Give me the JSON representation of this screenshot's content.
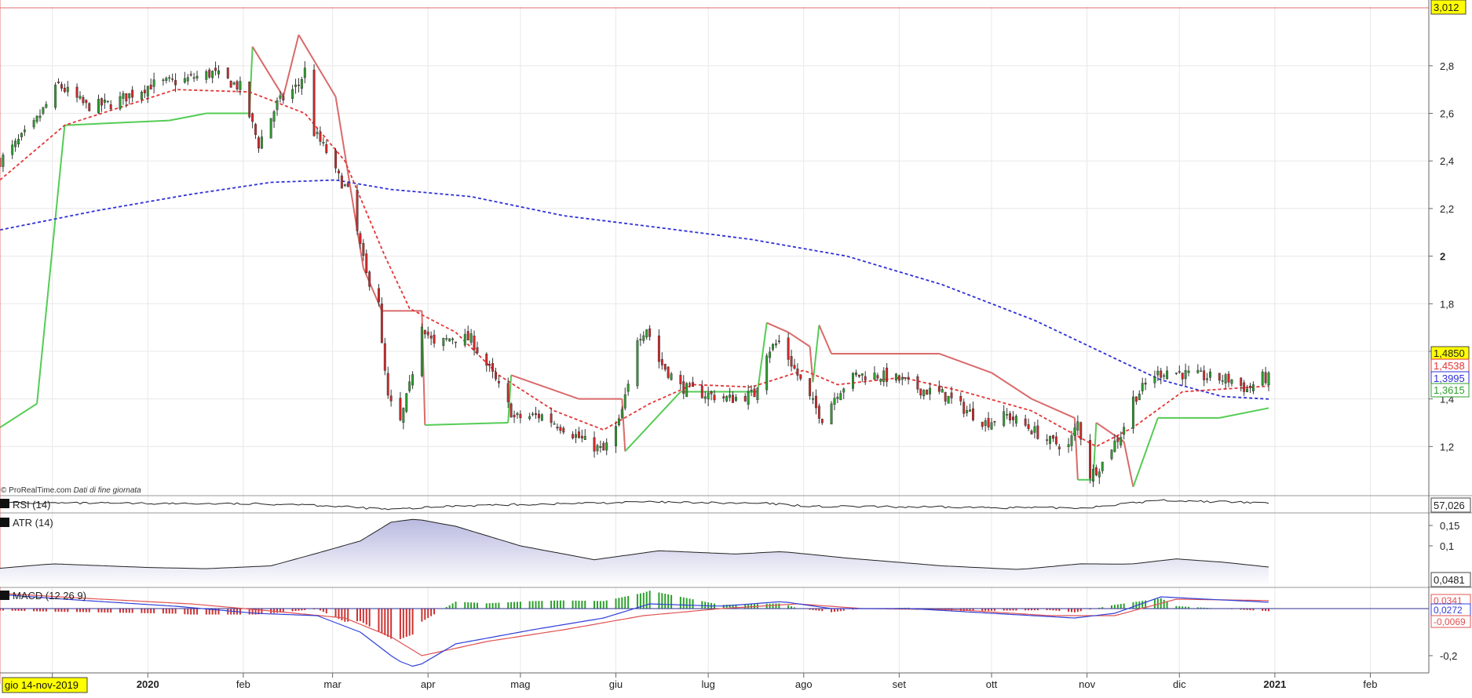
{
  "page": {
    "credit": "© ProRealTime.com",
    "credit_note": "Dati di fine giornata"
  },
  "colors": {
    "bull": "#2ca02c",
    "bear": "#d62728",
    "stop_red": "#d96a6a",
    "stop_green": "#55cc55",
    "sma20": "#e53535",
    "sma200": "#2f2fd8",
    "grid": "#e8e8e8",
    "axis": "#666666",
    "atr_fill": "#b9b9e0",
    "macd_line": "#2f3fd8",
    "signal_line": "#e05050",
    "hist_pos": "#2ca02c",
    "hist_neg": "#cc3333",
    "badge_yellow": "#ffff00",
    "badge_white": "#ffffff",
    "crosshair": "#e07070"
  },
  "chart_data": [
    {
      "type": "candlestick",
      "title": "",
      "ylim": [
        1.0,
        3.05
      ],
      "y_ticks": [
        "1,2",
        "1,4",
        "1,6",
        "1,8",
        "2",
        "2,2",
        "2,4",
        "2,6",
        "2,8"
      ],
      "y_tick_values": [
        1.2,
        1.4,
        1.6,
        1.8,
        2.0,
        2.2,
        2.4,
        2.6,
        2.8
      ],
      "bold_tick": "2",
      "x_month_labels": [
        "dic",
        "2020",
        "feb",
        "mar",
        "apr",
        "mag",
        "giu",
        "lug",
        "ago",
        "set",
        "ott",
        "nov",
        "dic",
        "2021",
        "feb"
      ],
      "x_month_dates": [
        "2019-12-01",
        "2020-01-01",
        "2020-02-01",
        "2020-03-01",
        "2020-04-01",
        "2020-05-01",
        "2020-06-01",
        "2020-07-01",
        "2020-08-01",
        "2020-09-01",
        "2020-10-01",
        "2020-11-01",
        "2020-12-01",
        "2021-01-01",
        "2021-02-01"
      ],
      "x_range": [
        "2019-11-14",
        "2021-02-20"
      ],
      "crosshair": {
        "date": "2019-11-14",
        "price": "3,012",
        "date_label": "gio 14-nov-2019"
      },
      "price_anchors": [
        [
          "2019-11-14",
          2.4
        ],
        [
          "2019-11-25",
          2.55
        ],
        [
          "2019-12-03",
          2.72
        ],
        [
          "2019-12-12",
          2.63
        ],
        [
          "2019-12-20",
          2.64
        ],
        [
          "2020-01-02",
          2.72
        ],
        [
          "2020-01-13",
          2.74
        ],
        [
          "2020-01-22",
          2.77
        ],
        [
          "2020-01-31",
          2.71
        ],
        [
          "2020-02-06",
          2.47
        ],
        [
          "2020-02-12",
          2.64
        ],
        [
          "2020-02-19",
          2.72
        ],
        [
          "2020-02-21",
          2.78
        ],
        [
          "2020-02-24",
          2.52
        ],
        [
          "2020-02-28",
          2.44
        ],
        [
          "2020-03-02",
          2.35
        ],
        [
          "2020-03-06",
          2.27
        ],
        [
          "2020-03-09",
          2.1
        ],
        [
          "2020-03-12",
          1.92
        ],
        [
          "2020-03-16",
          1.82
        ],
        [
          "2020-03-17",
          1.62
        ],
        [
          "2020-03-19",
          1.4
        ],
        [
          "2020-03-23",
          1.3
        ],
        [
          "2020-03-26",
          1.45
        ],
        [
          "2020-03-30",
          1.72
        ],
        [
          "2020-04-03",
          1.62
        ],
        [
          "2020-04-09",
          1.66
        ],
        [
          "2020-04-15",
          1.65
        ],
        [
          "2020-04-22",
          1.5
        ],
        [
          "2020-04-29",
          1.32
        ],
        [
          "2020-05-08",
          1.33
        ],
        [
          "2020-05-15",
          1.28
        ],
        [
          "2020-05-22",
          1.22
        ],
        [
          "2020-05-28",
          1.18
        ],
        [
          "2020-06-02",
          1.3
        ],
        [
          "2020-06-05",
          1.45
        ],
        [
          "2020-06-08",
          1.66
        ],
        [
          "2020-06-11",
          1.7
        ],
        [
          "2020-06-15",
          1.56
        ],
        [
          "2020-06-22",
          1.45
        ],
        [
          "2020-06-30",
          1.42
        ],
        [
          "2020-07-08",
          1.4
        ],
        [
          "2020-07-16",
          1.42
        ],
        [
          "2020-07-20",
          1.6
        ],
        [
          "2020-07-24",
          1.64
        ],
        [
          "2020-07-28",
          1.55
        ],
        [
          "2020-08-03",
          1.4
        ],
        [
          "2020-08-07",
          1.32
        ],
        [
          "2020-08-12",
          1.43
        ],
        [
          "2020-08-18",
          1.5
        ],
        [
          "2020-08-25",
          1.5
        ],
        [
          "2020-09-01",
          1.48
        ],
        [
          "2020-09-08",
          1.44
        ],
        [
          "2020-09-15",
          1.42
        ],
        [
          "2020-09-22",
          1.36
        ],
        [
          "2020-09-29",
          1.3
        ],
        [
          "2020-10-06",
          1.33
        ],
        [
          "2020-10-13",
          1.28
        ],
        [
          "2020-10-20",
          1.22
        ],
        [
          "2020-10-26",
          1.2
        ],
        [
          "2020-10-29",
          1.3
        ],
        [
          "2020-11-02",
          1.08
        ],
        [
          "2020-11-06",
          1.13
        ],
        [
          "2020-11-09",
          1.2
        ],
        [
          "2020-11-12",
          1.25
        ],
        [
          "2020-11-16",
          1.4
        ],
        [
          "2020-11-23",
          1.5
        ],
        [
          "2020-11-27",
          1.52
        ],
        [
          "2020-12-04",
          1.5
        ],
        [
          "2020-12-11",
          1.49
        ],
        [
          "2020-12-18",
          1.48
        ],
        [
          "2020-12-23",
          1.44
        ],
        [
          "2020-12-28",
          1.49
        ],
        [
          "2020-12-30",
          1.485
        ]
      ],
      "stop_anchors": [
        [
          "2019-11-14",
          1.28,
          "g"
        ],
        [
          "2019-11-26",
          1.38,
          "g"
        ],
        [
          "2019-12-05",
          2.55,
          "g"
        ],
        [
          "2020-01-08",
          2.57,
          "g"
        ],
        [
          "2020-01-20",
          2.6,
          "g"
        ],
        [
          "2020-02-03",
          2.6,
          "g"
        ],
        [
          "2020-02-04",
          2.88,
          "r"
        ],
        [
          "2020-02-14",
          2.67,
          "r"
        ],
        [
          "2020-02-19",
          2.93,
          "r"
        ],
        [
          "2020-03-02",
          2.67,
          "r"
        ],
        [
          "2020-03-11",
          1.95,
          "r"
        ],
        [
          "2020-03-17",
          1.77,
          "r"
        ],
        [
          "2020-03-30",
          1.77,
          "r"
        ],
        [
          "2020-03-31",
          1.29,
          "g"
        ],
        [
          "2020-04-27",
          1.3,
          "g"
        ],
        [
          "2020-04-28",
          1.5,
          "r"
        ],
        [
          "2020-05-20",
          1.4,
          "r"
        ],
        [
          "2020-06-03",
          1.4,
          "r"
        ],
        [
          "2020-06-04",
          1.18,
          "g"
        ],
        [
          "2020-06-22",
          1.43,
          "g"
        ],
        [
          "2020-07-17",
          1.43,
          "g"
        ],
        [
          "2020-07-20",
          1.72,
          "r"
        ],
        [
          "2020-07-27",
          1.68,
          "r"
        ],
        [
          "2020-08-03",
          1.62,
          "r"
        ],
        [
          "2020-08-04",
          1.47,
          "g"
        ],
        [
          "2020-08-06",
          1.71,
          "r"
        ],
        [
          "2020-08-10",
          1.59,
          "r"
        ],
        [
          "2020-09-14",
          1.59,
          "r"
        ],
        [
          "2020-10-01",
          1.51,
          "r"
        ],
        [
          "2020-10-14",
          1.4,
          "r"
        ],
        [
          "2020-10-28",
          1.32,
          "r"
        ],
        [
          "2020-10-29",
          1.06,
          "g"
        ],
        [
          "2020-11-03",
          1.06,
          "g"
        ],
        [
          "2020-11-04",
          1.3,
          "r"
        ],
        [
          "2020-11-13",
          1.22,
          "r"
        ],
        [
          "2020-11-16",
          1.03,
          "g"
        ],
        [
          "2020-11-24",
          1.32,
          "g"
        ],
        [
          "2020-12-14",
          1.32,
          "g"
        ],
        [
          "2020-12-30",
          1.3615,
          "g"
        ]
      ],
      "sma20_anchors": [
        [
          "2019-11-14",
          2.32
        ],
        [
          "2019-12-05",
          2.55
        ],
        [
          "2020-01-10",
          2.7
        ],
        [
          "2020-02-03",
          2.69
        ],
        [
          "2020-02-21",
          2.6
        ],
        [
          "2020-03-05",
          2.4
        ],
        [
          "2020-03-18",
          2.0
        ],
        [
          "2020-03-26",
          1.78
        ],
        [
          "2020-04-10",
          1.68
        ],
        [
          "2020-04-24",
          1.5
        ],
        [
          "2020-05-12",
          1.35
        ],
        [
          "2020-05-28",
          1.27
        ],
        [
          "2020-06-12",
          1.38
        ],
        [
          "2020-06-26",
          1.46
        ],
        [
          "2020-07-15",
          1.45
        ],
        [
          "2020-08-01",
          1.52
        ],
        [
          "2020-08-12",
          1.46
        ],
        [
          "2020-09-02",
          1.49
        ],
        [
          "2020-09-22",
          1.43
        ],
        [
          "2020-10-14",
          1.35
        ],
        [
          "2020-11-04",
          1.2
        ],
        [
          "2020-11-16",
          1.28
        ],
        [
          "2020-12-02",
          1.43
        ],
        [
          "2020-12-30",
          1.4538
        ]
      ],
      "sma200_anchors": [
        [
          "2019-11-14",
          2.11
        ],
        [
          "2019-12-15",
          2.19
        ],
        [
          "2020-01-15",
          2.26
        ],
        [
          "2020-02-10",
          2.31
        ],
        [
          "2020-03-02",
          2.32
        ],
        [
          "2020-03-20",
          2.28
        ],
        [
          "2020-04-15",
          2.25
        ],
        [
          "2020-05-15",
          2.17
        ],
        [
          "2020-06-15",
          2.12
        ],
        [
          "2020-07-15",
          2.07
        ],
        [
          "2020-08-15",
          2.0
        ],
        [
          "2020-09-15",
          1.88
        ],
        [
          "2020-10-15",
          1.73
        ],
        [
          "2020-11-15",
          1.54
        ],
        [
          "2020-11-25",
          1.48
        ],
        [
          "2020-12-15",
          1.41
        ],
        [
          "2020-12-30",
          1.3995
        ]
      ],
      "last_values": [
        {
          "label": "1,4850",
          "value": 1.485,
          "color": "#222222",
          "bg": "#ffff00"
        },
        {
          "label": "1,4538",
          "value": 1.4538,
          "color": "#e53535",
          "bg": "#ffffff"
        },
        {
          "label": "1,3995",
          "value": 1.3995,
          "color": "#2f2fd8",
          "bg": "#ffffff"
        },
        {
          "label": "1,3615",
          "value": 1.3615,
          "color": "#2ca02c",
          "bg": "#ffffff"
        }
      ]
    },
    {
      "type": "line",
      "title": "RSI (14)",
      "last_value": "57,026",
      "ylim": [
        20,
        80
      ],
      "anchors": [
        [
          "2019-11-14",
          58
        ],
        [
          "2020-01-15",
          55
        ],
        [
          "2020-02-20",
          52
        ],
        [
          "2020-03-20",
          28
        ],
        [
          "2020-04-10",
          45
        ],
        [
          "2020-06-10",
          62
        ],
        [
          "2020-07-20",
          55
        ],
        [
          "2020-08-05",
          42
        ],
        [
          "2020-10-30",
          35
        ],
        [
          "2020-11-25",
          70
        ],
        [
          "2020-12-30",
          57.026
        ]
      ]
    },
    {
      "type": "area",
      "title": "ATR (14)",
      "last_value": "0,0481",
      "y_ticks": [
        "0,1",
        "0,15"
      ],
      "y_tick_values": [
        0.1,
        0.15
      ],
      "ylim": [
        0.0,
        0.175
      ],
      "anchors": [
        [
          "2019-11-14",
          0.045
        ],
        [
          "2019-12-01",
          0.056
        ],
        [
          "2020-01-01",
          0.047
        ],
        [
          "2020-01-20",
          0.044
        ],
        [
          "2020-02-10",
          0.051
        ],
        [
          "2020-02-25",
          0.082
        ],
        [
          "2020-03-10",
          0.112
        ],
        [
          "2020-03-20",
          0.158
        ],
        [
          "2020-03-28",
          0.166
        ],
        [
          "2020-04-10",
          0.148
        ],
        [
          "2020-05-01",
          0.1
        ],
        [
          "2020-05-25",
          0.066
        ],
        [
          "2020-06-15",
          0.088
        ],
        [
          "2020-07-10",
          0.08
        ],
        [
          "2020-07-25",
          0.086
        ],
        [
          "2020-08-15",
          0.07
        ],
        [
          "2020-09-15",
          0.051
        ],
        [
          "2020-10-10",
          0.042
        ],
        [
          "2020-10-30",
          0.056
        ],
        [
          "2020-11-15",
          0.055
        ],
        [
          "2020-11-30",
          0.068
        ],
        [
          "2020-12-15",
          0.06
        ],
        [
          "2020-12-30",
          0.0481
        ]
      ]
    },
    {
      "type": "line",
      "title": "MACD (12 26 9)",
      "y_ticks": [
        "-0,2"
      ],
      "y_tick_values": [
        -0.2
      ],
      "ylim": [
        -0.27,
        0.08
      ],
      "last_values": [
        {
          "label": "0,0341",
          "value": 0.0341,
          "color": "#e05050"
        },
        {
          "label": "0,0272",
          "value": 0.0272,
          "color": "#2f3fd8"
        },
        {
          "label": "-0,0069",
          "value": -0.0069,
          "color": "#e05050"
        }
      ],
      "macd_anchors": [
        [
          "2019-11-14",
          0.06
        ],
        [
          "2019-12-05",
          0.04
        ],
        [
          "2020-01-10",
          0.01
        ],
        [
          "2020-02-05",
          -0.02
        ],
        [
          "2020-02-25",
          -0.03
        ],
        [
          "2020-03-10",
          -0.1
        ],
        [
          "2020-03-22",
          -0.22
        ],
        [
          "2020-03-28",
          -0.25
        ],
        [
          "2020-04-10",
          -0.15
        ],
        [
          "2020-05-05",
          -0.09
        ],
        [
          "2020-05-28",
          -0.04
        ],
        [
          "2020-06-12",
          0.02
        ],
        [
          "2020-07-05",
          0.01
        ],
        [
          "2020-07-25",
          0.03
        ],
        [
          "2020-08-10",
          0.0
        ],
        [
          "2020-09-05",
          0.0
        ],
        [
          "2020-10-01",
          -0.02
        ],
        [
          "2020-10-28",
          -0.04
        ],
        [
          "2020-11-10",
          -0.02
        ],
        [
          "2020-11-25",
          0.05
        ],
        [
          "2020-12-10",
          0.04
        ],
        [
          "2020-12-30",
          0.0272
        ]
      ],
      "signal_anchors": [
        [
          "2019-11-14",
          0.065
        ],
        [
          "2019-12-10",
          0.045
        ],
        [
          "2020-01-15",
          0.02
        ],
        [
          "2020-02-10",
          -0.01
        ],
        [
          "2020-03-05",
          -0.04
        ],
        [
          "2020-03-20",
          -0.12
        ],
        [
          "2020-03-30",
          -0.2
        ],
        [
          "2020-04-20",
          -0.14
        ],
        [
          "2020-05-15",
          -0.09
        ],
        [
          "2020-06-10",
          -0.03
        ],
        [
          "2020-07-05",
          0.0
        ],
        [
          "2020-07-30",
          0.02
        ],
        [
          "2020-08-20",
          0.0
        ],
        [
          "2020-09-20",
          -0.005
        ],
        [
          "2020-10-20",
          -0.03
        ],
        [
          "2020-11-10",
          -0.03
        ],
        [
          "2020-11-30",
          0.04
        ],
        [
          "2020-12-30",
          0.0341
        ]
      ]
    }
  ]
}
